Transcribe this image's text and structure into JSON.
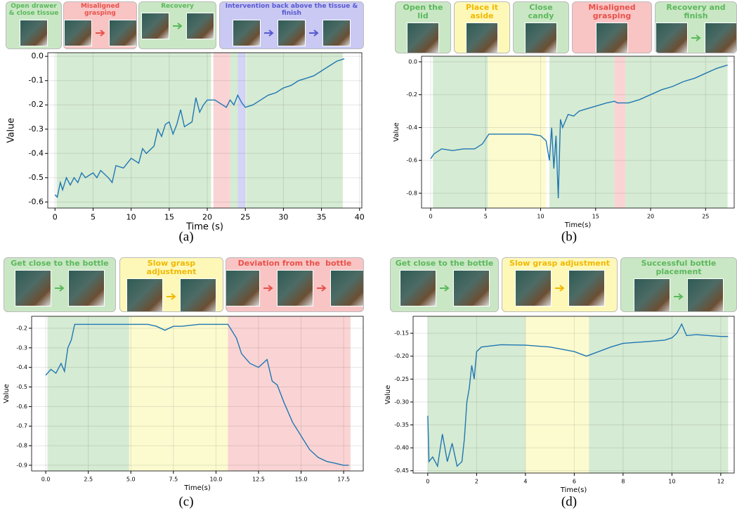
{
  "chart_data": [
    {
      "type": "line",
      "caption": "(a)",
      "x_label": "Time (s)",
      "y_label": "Value",
      "xlim": [
        -0.95,
        40.3
      ],
      "ylim": [
        -0.625,
        0.015
      ],
      "xticks": [
        0,
        5,
        10,
        15,
        20,
        25,
        30,
        35,
        40
      ],
      "yticks": [
        {
          "value": 0,
          "label": "0.0"
        },
        -0.1,
        -0.2,
        -0.3,
        -0.4,
        -0.5,
        -0.6
      ],
      "grid": true,
      "stages": [
        {
          "label": "Open drawer & close tissue",
          "color": "#5cb85c",
          "fill": "#c9e7c4"
        },
        {
          "label": "Misaligned grasping",
          "color": "#e8524a",
          "fill": "#f9c4c4"
        },
        {
          "label": "Recovery",
          "color": "#5cb85c",
          "fill": "#c9e7c4"
        },
        {
          "label": "Intervention back above the tissue & finish",
          "color": "#5858d0",
          "fill": "#c9c9f3"
        }
      ],
      "regions": [
        {
          "start": 0.2,
          "end": 20.5,
          "color": "#cfe8cb"
        },
        {
          "start": 20.8,
          "end": 23.0,
          "color": "#f9cccc"
        },
        {
          "start": 23.0,
          "end": 24.0,
          "color": "#cfe8cb"
        },
        {
          "start": 24.0,
          "end": 25.0,
          "color": "#cdcdf5"
        },
        {
          "start": 25.1,
          "end": 37.8,
          "color": "#cfe8cb"
        }
      ],
      "color": "#1f77b4",
      "x": [
        0,
        0.3,
        0.7,
        1,
        1.5,
        2,
        2.5,
        3,
        3.5,
        4,
        5,
        5.5,
        6,
        7,
        7.5,
        8,
        9,
        10,
        11,
        11.5,
        12,
        13,
        13.5,
        14,
        14.5,
        15,
        15.5,
        16,
        16.5,
        17,
        18,
        18.5,
        19,
        19.5,
        20,
        21,
        22,
        22.5,
        23,
        23.5,
        24,
        24.5,
        25,
        26,
        27,
        28,
        29,
        30,
        31,
        32,
        33,
        34,
        35,
        36,
        37,
        38
      ],
      "values": [
        -0.57,
        -0.58,
        -0.52,
        -0.55,
        -0.5,
        -0.53,
        -0.5,
        -0.52,
        -0.48,
        -0.5,
        -0.48,
        -0.5,
        -0.47,
        -0.5,
        -0.52,
        -0.45,
        -0.46,
        -0.42,
        -0.44,
        -0.38,
        -0.4,
        -0.37,
        -0.3,
        -0.33,
        -0.28,
        -0.27,
        -0.32,
        -0.28,
        -0.22,
        -0.29,
        -0.27,
        -0.17,
        -0.23,
        -0.2,
        -0.18,
        -0.18,
        -0.2,
        -0.21,
        -0.18,
        -0.2,
        -0.16,
        -0.19,
        -0.21,
        -0.2,
        -0.18,
        -0.16,
        -0.15,
        -0.13,
        -0.12,
        -0.1,
        -0.09,
        -0.08,
        -0.06,
        -0.04,
        -0.02,
        -0.01
      ]
    },
    {
      "type": "line",
      "caption": "(b)",
      "x_label": "Time(s)",
      "y_label": "Value",
      "xlim": [
        -0.83,
        27.6
      ],
      "ylim": [
        -0.89,
        0.034
      ],
      "xticks": [
        0,
        5,
        10,
        15,
        20,
        25
      ],
      "yticks": [
        {
          "value": 0,
          "label": "0.0"
        },
        -0.2,
        -0.4,
        -0.6,
        -0.8
      ],
      "grid": true,
      "stages": [
        {
          "label": "Open the lid",
          "color": "#5cb85c",
          "fill": "#c9e7c4"
        },
        {
          "label": "Place it aside",
          "color": "#f2b800",
          "fill": "#fdf8b8"
        },
        {
          "label": "Close candy",
          "color": "#5cb85c",
          "fill": "#c9e7c4"
        },
        {
          "label": "Misaligned grasping",
          "color": "#e8524a",
          "fill": "#f9c4c4"
        },
        {
          "label": "Recovery and finish",
          "color": "#5cb85c",
          "fill": "#c9e7c4"
        }
      ],
      "regions": [
        {
          "start": 0.2,
          "end": 5.2,
          "color": "#cfe8cb"
        },
        {
          "start": 5.2,
          "end": 10.5,
          "color": "#fcfac8"
        },
        {
          "start": 10.8,
          "end": 16.7,
          "color": "#cfe8cb"
        },
        {
          "start": 16.7,
          "end": 17.7,
          "color": "#f9cccc"
        },
        {
          "start": 17.7,
          "end": 27,
          "color": "#cfe8cb"
        }
      ],
      "color": "#1f77b4",
      "x": [
        0,
        0.3,
        1,
        2,
        3,
        4,
        4.7,
        5.3,
        6,
        7,
        8,
        9,
        10,
        10.5,
        10.8,
        11,
        11.2,
        11.4,
        11.6,
        11.8,
        12,
        12.5,
        13,
        13.5,
        14,
        15,
        16,
        16.7,
        17,
        18,
        19,
        20,
        21,
        22,
        23,
        24,
        25,
        26,
        27
      ],
      "values": [
        -0.59,
        -0.56,
        -0.53,
        -0.54,
        -0.53,
        -0.53,
        -0.5,
        -0.44,
        -0.44,
        -0.44,
        -0.44,
        -0.44,
        -0.45,
        -0.48,
        -0.6,
        -0.4,
        -0.65,
        -0.45,
        -0.83,
        -0.35,
        -0.4,
        -0.32,
        -0.33,
        -0.3,
        -0.29,
        -0.27,
        -0.25,
        -0.24,
        -0.25,
        -0.25,
        -0.23,
        -0.2,
        -0.17,
        -0.15,
        -0.12,
        -0.1,
        -0.07,
        -0.04,
        -0.02
      ]
    },
    {
      "type": "line",
      "caption": "(c)",
      "x_label": "Time(s)",
      "y_label": "Value",
      "xlim": [
        -0.83,
        18.65
      ],
      "ylim": [
        -0.929,
        -0.139
      ],
      "xticks": [
        {
          "value": 0,
          "label": "0.0"
        },
        2.5,
        {
          "value": 5,
          "label": "5.0"
        },
        7.5,
        {
          "value": 10,
          "label": "10.0"
        },
        12.5,
        {
          "value": 15,
          "label": "15.0"
        },
        17.5
      ],
      "yticks": [
        -0.2,
        -0.3,
        -0.4,
        -0.5,
        -0.6,
        -0.7,
        -0.8,
        -0.9
      ],
      "grid": true,
      "stages": [
        {
          "label": "Get close to the bottle",
          "color": "#5cb85c",
          "fill": "#c9e7c4"
        },
        {
          "label": "Slow grasp adjustment",
          "color": "#f2b800",
          "fill": "#fdf8b8"
        },
        {
          "label": "Deviation from the  bottle",
          "color": "#e8524a",
          "fill": "#f9c4c4"
        }
      ],
      "regions": [
        {
          "start": 0.1,
          "end": 4.9,
          "color": "#cfe8cb"
        },
        {
          "start": 4.9,
          "end": 10.7,
          "color": "#fcfac8"
        },
        {
          "start": 10.7,
          "end": 17.9,
          "color": "#f9cccc"
        }
      ],
      "color": "#1f77b4",
      "x": [
        0,
        0.3,
        0.6,
        0.9,
        1.1,
        1.3,
        1.5,
        1.7,
        2,
        3,
        4,
        5,
        6,
        6.5,
        7,
        7.5,
        8,
        9,
        10,
        10.7,
        11.2,
        11.5,
        12,
        12.5,
        13,
        13.3,
        13.6,
        14,
        14.5,
        15,
        15.5,
        16,
        16.5,
        17,
        17.5,
        17.8
      ],
      "values": [
        -0.44,
        -0.41,
        -0.43,
        -0.38,
        -0.42,
        -0.3,
        -0.26,
        -0.18,
        -0.18,
        -0.18,
        -0.18,
        -0.18,
        -0.18,
        -0.19,
        -0.21,
        -0.19,
        -0.19,
        -0.18,
        -0.18,
        -0.18,
        -0.25,
        -0.33,
        -0.38,
        -0.4,
        -0.36,
        -0.47,
        -0.49,
        -0.58,
        -0.68,
        -0.75,
        -0.82,
        -0.86,
        -0.88,
        -0.89,
        -0.9,
        -0.9
      ]
    },
    {
      "type": "line",
      "caption": "(d)",
      "x_label": "Time(s)",
      "y_label": "Value",
      "xlim": [
        -0.6,
        12.55
      ],
      "ylim": [
        -0.455,
        -0.113
      ],
      "xticks": [
        0,
        2,
        4,
        6,
        8,
        10,
        12
      ],
      "yticks": [
        -0.15,
        {
          "value": -0.2,
          "label": "-0.20"
        },
        -0.25,
        {
          "value": -0.3,
          "label": "-0.30"
        },
        -0.35,
        {
          "value": -0.4,
          "label": "-0.40"
        },
        -0.45
      ],
      "grid": true,
      "stages": [
        {
          "label": "Get close to the bottle",
          "color": "#5cb85c",
          "fill": "#c9e7c4"
        },
        {
          "label": "Slow grasp adjustment",
          "color": "#f2b800",
          "fill": "#fdf8b8"
        },
        {
          "label": "Successful bottle placement",
          "color": "#5cb85c",
          "fill": "#c9e7c4"
        }
      ],
      "regions": [
        {
          "start": 0,
          "end": 4,
          "color": "#cfe8cb"
        },
        {
          "start": 4,
          "end": 6.6,
          "color": "#fcfac8"
        },
        {
          "start": 6.6,
          "end": 12.3,
          "color": "#cfe8cb"
        }
      ],
      "color": "#1f77b4",
      "x": [
        0,
        0.05,
        0.2,
        0.4,
        0.6,
        0.8,
        1,
        1.2,
        1.4,
        1.5,
        1.6,
        1.7,
        1.8,
        1.9,
        2,
        2.2,
        2.5,
        3,
        4,
        5,
        6,
        6.5,
        7,
        7.5,
        8,
        9,
        9.7,
        10,
        10.2,
        10.4,
        10.6,
        11,
        12,
        12.3
      ],
      "values": [
        -0.33,
        -0.43,
        -0.42,
        -0.44,
        -0.37,
        -0.43,
        -0.39,
        -0.44,
        -0.43,
        -0.38,
        -0.3,
        -0.27,
        -0.22,
        -0.25,
        -0.19,
        -0.18,
        -0.178,
        -0.175,
        -0.176,
        -0.18,
        -0.19,
        -0.2,
        -0.19,
        -0.18,
        -0.172,
        -0.168,
        -0.165,
        -0.16,
        -0.15,
        -0.13,
        -0.155,
        -0.153,
        -0.157,
        -0.157
      ]
    }
  ]
}
